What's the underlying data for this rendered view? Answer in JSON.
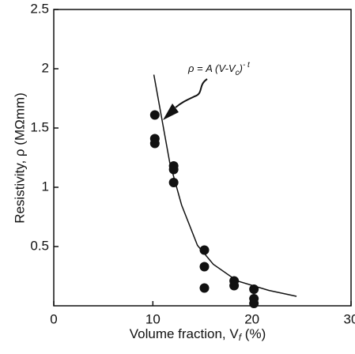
{
  "chart_data": {
    "type": "scatter",
    "xlim": [
      0,
      30
    ],
    "xticks": [
      0,
      10,
      20,
      30
    ],
    "ylim": [
      0,
      2.5
    ],
    "yticks": [
      0.5,
      1,
      1.5,
      2,
      2.5
    ],
    "xlabel": {
      "main": "Volume fraction, V",
      "sub": "f",
      "unit": " (%)"
    },
    "ylabel": "Resistivity, ρ (MΩmm)",
    "annotation": {
      "main": "ρ = A (V-V",
      "sub": "c",
      "close": ")",
      "sup": "- t"
    },
    "color": "#111111",
    "points": {
      "x": [
        10.2,
        10.2,
        10.2,
        12.1,
        12.1,
        12.1,
        15.2,
        15.2,
        15.2,
        18.2,
        18.2,
        20.2,
        20.2,
        20.2
      ],
      "y": [
        1.61,
        1.41,
        1.37,
        1.18,
        1.15,
        1.04,
        0.47,
        0.33,
        0.15,
        0.21,
        0.17,
        0.14,
        0.06,
        0.02
      ]
    },
    "fit": {
      "x": [
        10.1,
        10.9,
        11.7,
        12.9,
        14.5,
        16.1,
        18.5,
        21.7,
        24.5
      ],
      "y": [
        1.95,
        1.58,
        1.21,
        0.85,
        0.51,
        0.35,
        0.21,
        0.13,
        0.08
      ]
    }
  }
}
